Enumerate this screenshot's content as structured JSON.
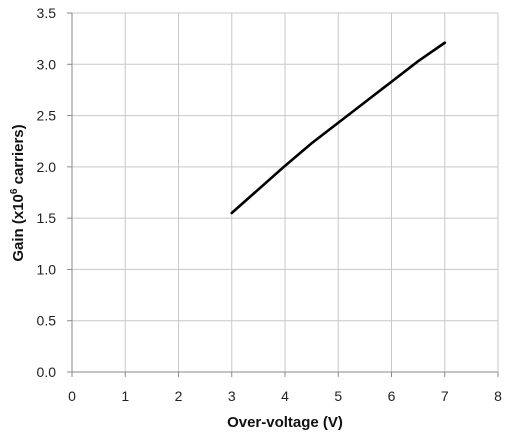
{
  "chart_data": {
    "type": "line",
    "title": "",
    "xlabel": "Over-voltage (V)",
    "ylabel_main": "Gain (x10",
    "ylabel_sup": "6",
    "ylabel_tail": " carriers)",
    "xlim": [
      0,
      8
    ],
    "ylim": [
      0,
      3.5
    ],
    "x_ticks": [
      "0",
      "1",
      "2",
      "3",
      "4",
      "5",
      "6",
      "7",
      "8"
    ],
    "y_ticks": [
      "0.0",
      "0.5",
      "1.0",
      "1.5",
      "2.0",
      "2.5",
      "3.0",
      "3.5"
    ],
    "x_tick_values": [
      0,
      1,
      2,
      3,
      4,
      5,
      6,
      7,
      8
    ],
    "y_tick_values": [
      0,
      0.5,
      1.0,
      1.5,
      2.0,
      2.5,
      3.0,
      3.5
    ],
    "grid": true,
    "legend": "none",
    "series": [
      {
        "color": "#000000",
        "x": [
          3.0,
          3.5,
          4.0,
          4.5,
          5.0,
          5.5,
          6.0,
          6.5,
          7.0
        ],
        "y": [
          1.55,
          1.78,
          2.01,
          2.23,
          2.43,
          2.63,
          2.83,
          3.03,
          3.21
        ]
      }
    ]
  }
}
